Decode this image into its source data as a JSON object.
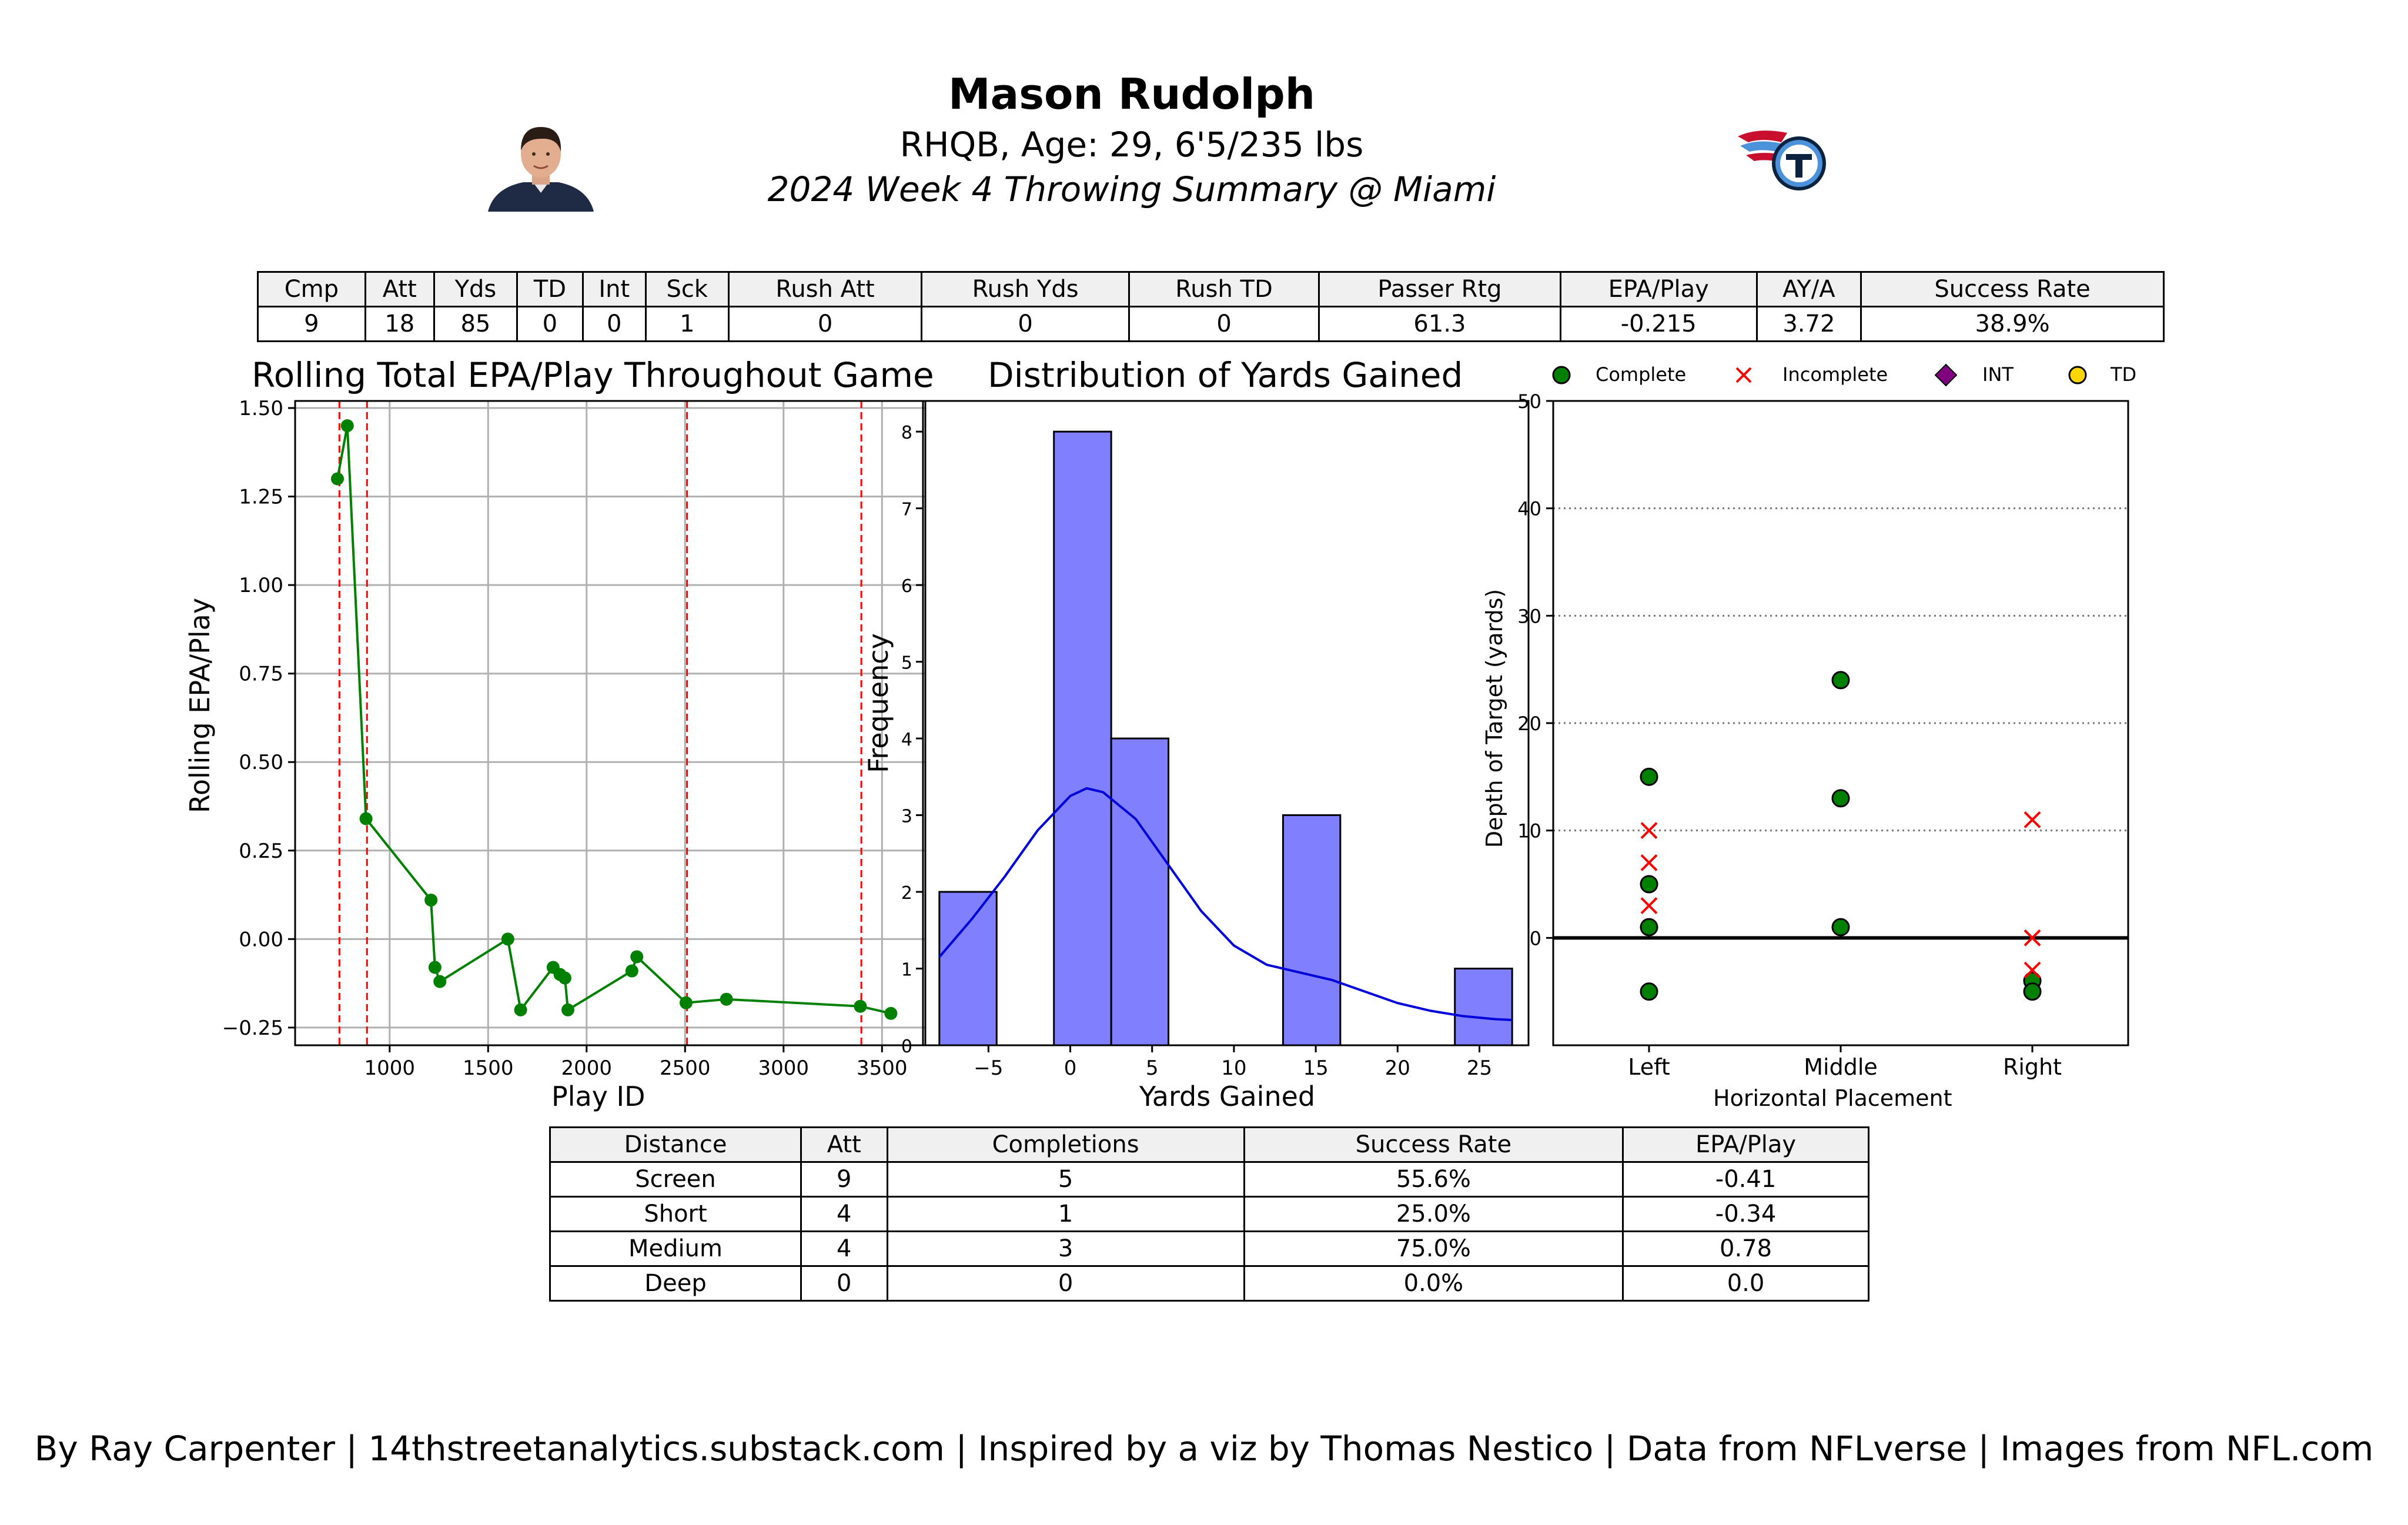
{
  "header": {
    "name": "Mason Rudolph",
    "bio": "RHQB, Age: 29, 6'5/235 lbs",
    "summary": "2024 Week 4 Throwing Summary @ Miami"
  },
  "stats_table": {
    "headers": [
      "Cmp",
      "Att",
      "Yds",
      "TD",
      "Int",
      "Sck",
      "Rush Att",
      "Rush Yds",
      "Rush TD",
      "Passer Rtg",
      "EPA/Play",
      "AY/A",
      "Success Rate"
    ],
    "values": [
      "9",
      "18",
      "85",
      "0",
      "0",
      "1",
      "0",
      "0",
      "0",
      "61.3",
      "-0.215",
      "3.72",
      "38.9%"
    ]
  },
  "distance_table": {
    "headers": [
      "Distance",
      "Att",
      "Completions",
      "Success Rate",
      "EPA/Play"
    ],
    "rows": [
      [
        "Screen",
        "9",
        "5",
        "55.6%",
        "-0.41"
      ],
      [
        "Short",
        "4",
        "1",
        "25.0%",
        "-0.34"
      ],
      [
        "Medium",
        "4",
        "3",
        "75.0%",
        "0.78"
      ],
      [
        "Deep",
        "0",
        "0",
        "0.0%",
        "0.0"
      ]
    ]
  },
  "chart_data": [
    {
      "type": "line",
      "title": "Rolling Total EPA/Play Throughout Game",
      "xlabel": "Play ID",
      "ylabel": "Rolling EPA/Play",
      "xlim": [
        520,
        3720
      ],
      "ylim": [
        -0.3,
        1.52
      ],
      "xticks": [
        1000,
        1500,
        2000,
        2500,
        3000,
        3500
      ],
      "yticks": [
        -0.25,
        0.0,
        0.25,
        0.5,
        0.75,
        1.0,
        1.25,
        1.5
      ],
      "ytick_labels": [
        "−0.25",
        "0.00",
        "0.25",
        "0.50",
        "0.75",
        "1.00",
        "1.25",
        "1.50"
      ],
      "grid": true,
      "color": "#008000",
      "vlines": [
        745,
        885,
        2510,
        3395
      ],
      "vline_color": "#ff0000",
      "x": [
        735,
        785,
        880,
        1210,
        1230,
        1255,
        1600,
        1665,
        1830,
        1865,
        1890,
        1905,
        2230,
        2255,
        2505,
        2710,
        3390,
        3545
      ],
      "y": [
        1.3,
        1.45,
        0.34,
        0.11,
        -0.08,
        -0.12,
        0.0,
        -0.2,
        -0.08,
        -0.1,
        -0.11,
        -0.2,
        -0.09,
        -0.05,
        -0.18,
        -0.17,
        -0.19,
        -0.21
      ]
    },
    {
      "type": "bar",
      "title": "Distribution of Yards Gained",
      "xlabel": "Yards Gained",
      "ylabel": "Frequency",
      "xlim": [
        -9,
        28
      ],
      "ylim": [
        0,
        8.4
      ],
      "xticks": [
        -5,
        0,
        5,
        10,
        15,
        20,
        25
      ],
      "xtick_labels": [
        "−5",
        "0",
        "5",
        "10",
        "15",
        "20",
        "25"
      ],
      "yticks": [
        0,
        1,
        2,
        3,
        4,
        5,
        6,
        7,
        8
      ],
      "bar_color": "#8080ff",
      "kde_color": "#0000dd",
      "bins": [
        [
          -8,
          -4.5,
          2
        ],
        [
          -1,
          2.5,
          8
        ],
        [
          2.5,
          6,
          4
        ],
        [
          13,
          16.5,
          3
        ],
        [
          23.5,
          27,
          1
        ]
      ],
      "kde": [
        [
          -8,
          1.15
        ],
        [
          -6,
          1.65
        ],
        [
          -4,
          2.2
        ],
        [
          -2,
          2.8
        ],
        [
          0,
          3.25
        ],
        [
          1,
          3.35
        ],
        [
          2,
          3.3
        ],
        [
          4,
          2.95
        ],
        [
          6,
          2.35
        ],
        [
          8,
          1.75
        ],
        [
          10,
          1.3
        ],
        [
          12,
          1.05
        ],
        [
          14,
          0.95
        ],
        [
          16,
          0.85
        ],
        [
          18,
          0.7
        ],
        [
          20,
          0.55
        ],
        [
          22,
          0.45
        ],
        [
          24,
          0.38
        ],
        [
          26,
          0.34
        ],
        [
          27,
          0.33
        ]
      ]
    },
    {
      "type": "scatter",
      "xlabel": "Horizontal Placement",
      "ylabel": "Depth of Target (yards)",
      "categories": [
        "Left",
        "Middle",
        "Right"
      ],
      "ylim": [
        -10,
        50
      ],
      "yticks": [
        0,
        10,
        20,
        30,
        40,
        50
      ],
      "legend": [
        "Complete",
        "Incomplete",
        "INT",
        "TD"
      ],
      "legend_colors": [
        "#008000",
        "#ff0000",
        "#800080",
        "#ffd700"
      ],
      "complete": [
        [
          "Left",
          15
        ],
        [
          "Left",
          5
        ],
        [
          "Left",
          1
        ],
        [
          "Left",
          -5
        ],
        [
          "Middle",
          24
        ],
        [
          "Middle",
          13
        ],
        [
          "Middle",
          1
        ],
        [
          "Right",
          -4
        ],
        [
          "Right",
          -5
        ]
      ],
      "incomplete": [
        [
          "Left",
          10
        ],
        [
          "Left",
          7
        ],
        [
          "Left",
          3
        ],
        [
          "Right",
          11
        ],
        [
          "Right",
          0
        ],
        [
          "Right",
          -3
        ]
      ],
      "int": [],
      "td": []
    }
  ],
  "footer": "By Ray Carpenter | 14thstreetanalytics.substack.com | Inspired by a viz by Thomas Nestico | Data from NFLverse | Images from NFL.com"
}
